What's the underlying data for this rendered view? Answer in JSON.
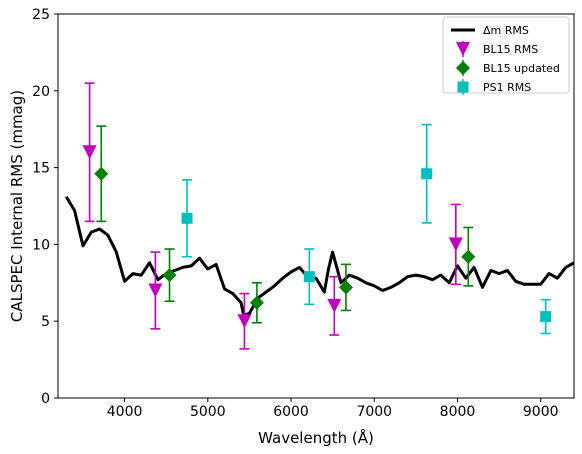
{
  "chart_data": {
    "type": "scatter",
    "xlabel": "Wavelength (Å)",
    "ylabel": "CALSPEC Internal RMS (mmag)",
    "xlim": [
      3200,
      9400
    ],
    "ylim": [
      0,
      25
    ],
    "xticks": [
      4000,
      5000,
      6000,
      7000,
      8000,
      9000
    ],
    "yticks": [
      0,
      5,
      10,
      15,
      20,
      25
    ],
    "xtick_labels": [
      "4000",
      "5000",
      "6000",
      "7000",
      "8000",
      "9000"
    ],
    "ytick_labels": [
      "0",
      "5",
      "10",
      "15",
      "20",
      "25"
    ],
    "grid": false,
    "legend_position": "top-right",
    "series": [
      {
        "name": "Δm RMS",
        "kind": "line",
        "color": "#000000",
        "x": [
          3300,
          3400,
          3500,
          3600,
          3700,
          3800,
          3900,
          4000,
          4100,
          4200,
          4300,
          4400,
          4500,
          4600,
          4700,
          4800,
          4900,
          5000,
          5100,
          5200,
          5300,
          5400,
          5430,
          5500,
          5600,
          5700,
          5800,
          5900,
          6000,
          6100,
          6200,
          6300,
          6400,
          6450,
          6500,
          6600,
          6700,
          6800,
          6900,
          7000,
          7100,
          7200,
          7300,
          7400,
          7500,
          7600,
          7700,
          7800,
          7900,
          8000,
          8100,
          8200,
          8300,
          8400,
          8500,
          8600,
          8700,
          8800,
          8900,
          9000,
          9100,
          9200,
          9300,
          9400
        ],
        "y": [
          13.1,
          12.2,
          9.9,
          10.8,
          11.0,
          10.6,
          9.5,
          7.6,
          8.1,
          8.0,
          8.8,
          7.7,
          8.1,
          8.3,
          8.5,
          8.6,
          9.1,
          8.4,
          8.7,
          7.1,
          6.8,
          6.2,
          5.4,
          5.5,
          6.5,
          6.9,
          7.3,
          7.8,
          8.2,
          8.5,
          7.9,
          7.8,
          6.9,
          8.4,
          9.5,
          7.5,
          8.0,
          7.8,
          7.5,
          7.3,
          7.0,
          7.2,
          7.5,
          7.9,
          8.0,
          7.9,
          7.7,
          8.0,
          7.5,
          8.6,
          7.8,
          8.5,
          7.2,
          8.3,
          8.1,
          8.3,
          7.6,
          7.4,
          7.4,
          7.4,
          8.1,
          7.8,
          8.5,
          8.8
        ]
      },
      {
        "name": "BL15 RMS",
        "kind": "errorbar",
        "marker": "triangle-down",
        "color": "#bf00bf",
        "x": [
          3580,
          4370,
          5440,
          6520,
          7980
        ],
        "y": [
          16.0,
          7.0,
          5.0,
          6.0,
          10.0
        ],
        "yerr_low": [
          4.5,
          2.5,
          1.8,
          1.9,
          2.6
        ],
        "yerr_high": [
          4.5,
          2.5,
          1.8,
          1.9,
          2.6
        ]
      },
      {
        "name": "BL15 updated",
        "kind": "errorbar",
        "marker": "diamond",
        "color": "#008000",
        "x": [
          3720,
          4540,
          5590,
          6660,
          8130
        ],
        "y": [
          14.6,
          8.0,
          6.2,
          7.2,
          9.2
        ],
        "yerr_low": [
          3.1,
          1.7,
          1.3,
          1.5,
          1.9
        ],
        "yerr_high": [
          3.1,
          1.7,
          1.3,
          1.5,
          1.9
        ]
      },
      {
        "name": "PS1 RMS",
        "kind": "errorbar",
        "marker": "square",
        "color": "#00bfbf",
        "x": [
          4750,
          6220,
          7630,
          9060
        ],
        "y": [
          11.7,
          7.9,
          14.6,
          5.3
        ],
        "yerr_low": [
          2.5,
          1.8,
          3.2,
          1.1
        ],
        "yerr_high": [
          2.5,
          1.8,
          3.2,
          1.1
        ]
      }
    ]
  }
}
